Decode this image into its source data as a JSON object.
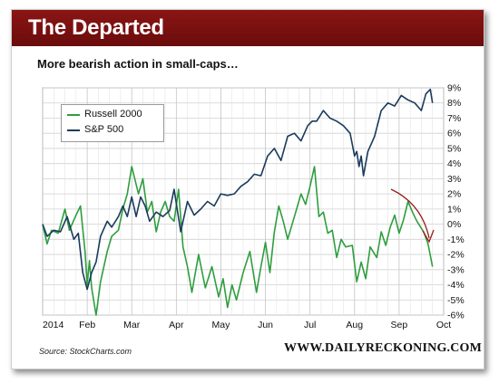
{
  "header": {
    "title": "The Departed",
    "subtitle": "More bearish action in small-caps…"
  },
  "footer": {
    "source": "Source: StockCharts.com",
    "brand": "WWW.DAILYRECKONING.COM"
  },
  "colors": {
    "title_bar": "#8b1515",
    "russell": "#2e9e3e",
    "sp500": "#1a3b5c",
    "arrow": "#9b1c1c"
  },
  "chart_data": {
    "type": "line",
    "title": "",
    "xlabel": "",
    "ylabel": "",
    "ylim": [
      -6,
      9
    ],
    "y_axis_side": "right",
    "y_ticks": [
      9,
      8,
      7,
      6,
      5,
      4,
      3,
      2,
      1,
      0,
      -1,
      -2,
      -3,
      -4,
      -5,
      -6
    ],
    "y_tick_labels": [
      "9%",
      "8%",
      "7%",
      "6%",
      "5%",
      "4%",
      "3%",
      "2%",
      "1%",
      "0%",
      "-1%",
      "-2%",
      "-3%",
      "-4%",
      "-5%",
      "-6%"
    ],
    "x_ticks": [
      0,
      1,
      2,
      3,
      4,
      5,
      6,
      7,
      8,
      9
    ],
    "x_tick_labels": [
      "2014",
      "Feb",
      "Mar",
      "Apr",
      "May",
      "Jun",
      "Jul",
      "Aug",
      "Sep",
      "Oct"
    ],
    "xlim": [
      0,
      9
    ],
    "grid": true,
    "legend": "top-left",
    "series": [
      {
        "name": "Russell 2000",
        "color": "#2e9e3e",
        "x": [
          0,
          0.1,
          0.2,
          0.35,
          0.5,
          0.6,
          0.75,
          0.85,
          0.95,
          1.0,
          1.05,
          1.1,
          1.2,
          1.3,
          1.45,
          1.55,
          1.7,
          1.8,
          1.9,
          2.0,
          2.05,
          2.15,
          2.25,
          2.35,
          2.45,
          2.55,
          2.65,
          2.75,
          2.85,
          2.95,
          3.05,
          3.15,
          3.25,
          3.35,
          3.5,
          3.65,
          3.8,
          3.95,
          4.05,
          4.15,
          4.25,
          4.35,
          4.5,
          4.65,
          4.8,
          4.9,
          5.0,
          5.1,
          5.2,
          5.3,
          5.4,
          5.5,
          5.65,
          5.8,
          5.9,
          6.0,
          6.1,
          6.2,
          6.3,
          6.4,
          6.5,
          6.6,
          6.7,
          6.8,
          6.95,
          7.05,
          7.15,
          7.25,
          7.35,
          7.5,
          7.6,
          7.7,
          7.8,
          7.9,
          8.0,
          8.1,
          8.2,
          8.3,
          8.4,
          8.55,
          8.65,
          8.75
        ],
        "values": [
          0,
          -1.3,
          -0.4,
          -0.6,
          1.0,
          -0.4,
          0.6,
          1.2,
          -1.8,
          -4.0,
          -2.4,
          -4.2,
          -6.0,
          -3.8,
          -1.8,
          -0.8,
          -0.4,
          1.0,
          2.0,
          3.8,
          3.2,
          2.0,
          3.0,
          0.8,
          1.5,
          -0.5,
          0.8,
          1.5,
          0.5,
          0.2,
          2.3,
          -1.5,
          -2.8,
          -4.5,
          -2.0,
          -4.2,
          -2.8,
          -4.8,
          -3.6,
          -5.5,
          -4.0,
          -5.0,
          -3.2,
          -1.8,
          -4.5,
          -2.8,
          -1.2,
          -3.2,
          -0.5,
          1.2,
          0.2,
          -1.0,
          0.5,
          2.0,
          1.3,
          2.5,
          3.8,
          0.5,
          0.8,
          -0.6,
          -0.4,
          -2.2,
          -1.0,
          -1.5,
          -1.4,
          -3.8,
          -2.5,
          -3.6,
          -1.5,
          -2.2,
          -0.5,
          -1.4,
          -0.2,
          0.6,
          -0.6,
          0.3,
          1.5,
          0.8,
          0.2,
          -0.5,
          -1.3,
          -2.8
        ]
      },
      {
        "name": "S&P 500",
        "color": "#1a3b5c",
        "x": [
          0,
          0.1,
          0.25,
          0.4,
          0.55,
          0.7,
          0.8,
          0.9,
          1.0,
          1.1,
          1.2,
          1.3,
          1.45,
          1.55,
          1.7,
          1.8,
          1.9,
          2.0,
          2.1,
          2.2,
          2.3,
          2.4,
          2.55,
          2.7,
          2.85,
          2.95,
          3.1,
          3.25,
          3.4,
          3.55,
          3.7,
          3.85,
          4.0,
          4.15,
          4.3,
          4.45,
          4.6,
          4.75,
          4.9,
          5.05,
          5.2,
          5.35,
          5.5,
          5.65,
          5.8,
          5.95,
          6.05,
          6.15,
          6.3,
          6.45,
          6.6,
          6.75,
          6.9,
          7.0,
          7.05,
          7.1,
          7.15,
          7.2,
          7.3,
          7.45,
          7.6,
          7.75,
          7.9,
          8.05,
          8.2,
          8.35,
          8.5,
          8.6,
          8.7,
          8.75
        ],
        "values": [
          0,
          -0.8,
          -0.4,
          -0.5,
          0.5,
          -1.0,
          -0.6,
          -3.2,
          -4.3,
          -3.2,
          -2.5,
          -0.8,
          0.2,
          -0.2,
          0.5,
          1.2,
          0.5,
          1.8,
          0.5,
          1.8,
          1.2,
          0.2,
          0.8,
          0.5,
          0.9,
          2.3,
          -0.5,
          1.5,
          0.6,
          1.0,
          1.5,
          1.2,
          2.0,
          1.9,
          2.0,
          2.5,
          2.8,
          3.3,
          3.2,
          4.5,
          5.0,
          4.2,
          5.8,
          6.0,
          5.5,
          6.5,
          6.8,
          6.8,
          7.5,
          7.0,
          6.8,
          6.5,
          6.0,
          4.5,
          4.8,
          3.8,
          4.5,
          3.2,
          4.8,
          5.8,
          7.5,
          8.0,
          7.8,
          8.5,
          8.2,
          8.0,
          7.5,
          8.6,
          8.9,
          8.0
        ]
      }
    ]
  }
}
